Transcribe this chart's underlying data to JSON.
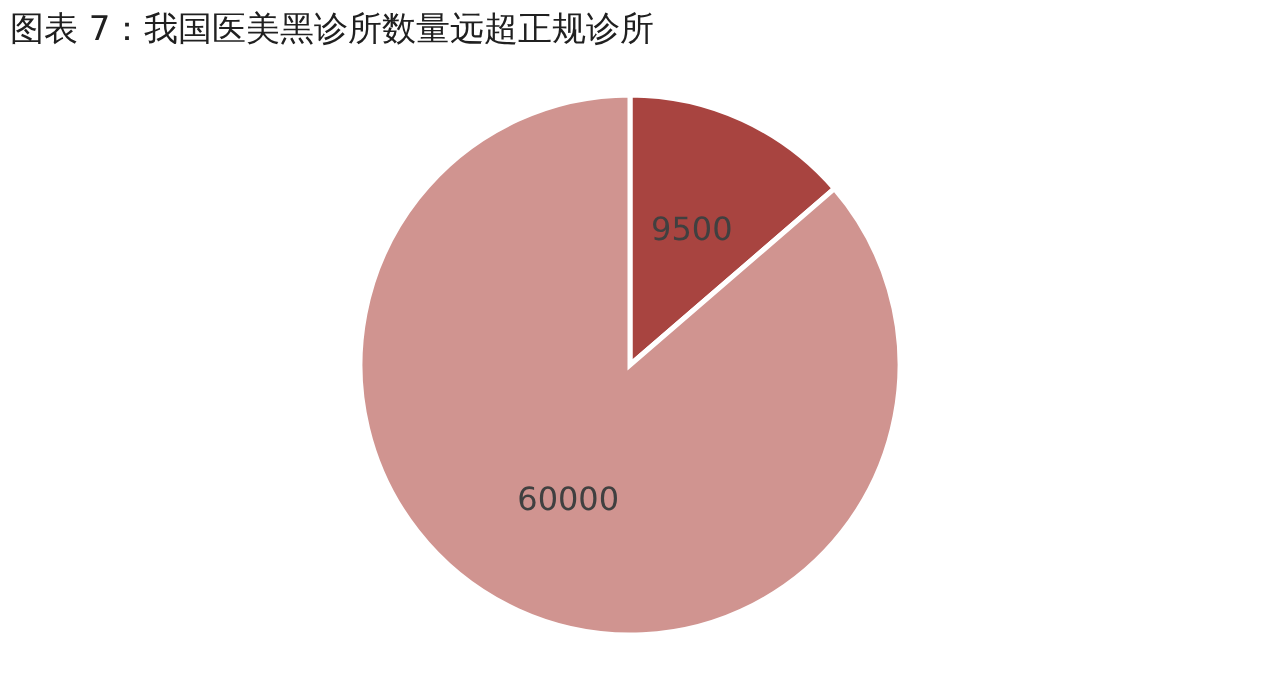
{
  "chart_data": {
    "type": "pie",
    "title": "图表 7：我国医美黑诊所数量远超正规诊所",
    "categories": [
      null,
      null
    ],
    "values": [
      9500,
      60000
    ],
    "colors": [
      "#a84440",
      "#d09490"
    ],
    "data_labels": true,
    "legend": false
  }
}
